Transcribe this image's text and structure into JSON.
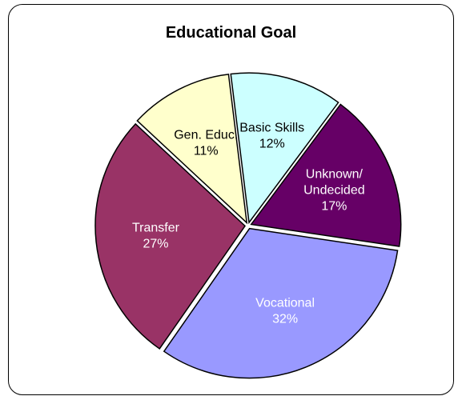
{
  "chart_data": {
    "type": "pie",
    "title": "Educational Goal",
    "slices": [
      {
        "label": "Basic Skills",
        "value": 12,
        "percent_label": "12%",
        "color": "#ccffff",
        "label_color": "#000000"
      },
      {
        "label": "Unknown/\nUndecided",
        "value": 17,
        "percent_label": "17%",
        "color": "#660066",
        "label_color": "#ffffff"
      },
      {
        "label": "Vocational",
        "value": 32,
        "percent_label": "32%",
        "color": "#9999ff",
        "label_color": "#ffffff"
      },
      {
        "label": "Transfer",
        "value": 27,
        "percent_label": "27%",
        "color": "#993366",
        "label_color": "#ffffff"
      },
      {
        "label": "Gen. Educ.",
        "value": 11,
        "percent_label": "11%",
        "color": "#ffffcc",
        "label_color": "#000000"
      }
    ],
    "legend": "none",
    "start_angle_deg": -7,
    "direction": "clockwise"
  }
}
